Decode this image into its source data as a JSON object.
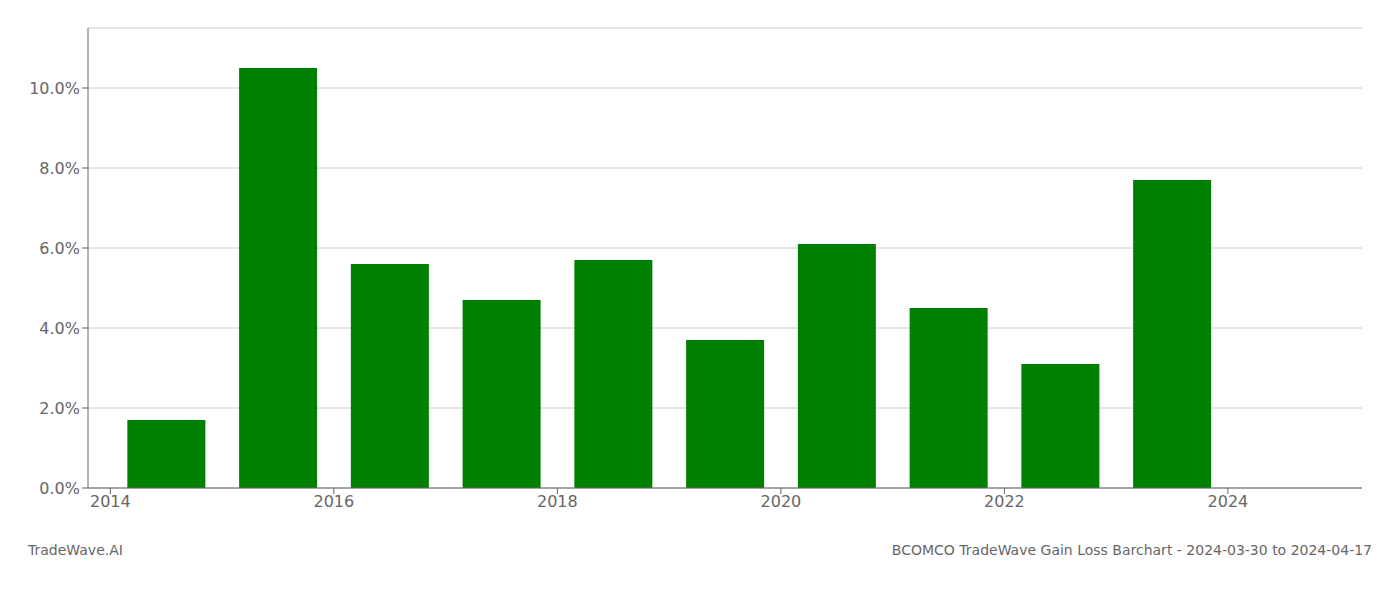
{
  "chart_data": {
    "type": "bar",
    "title": "BCOMCO TradeWave Gain Loss Barchart - 2024-03-30 to 2024-04-17",
    "annotations": [
      "TradeWave.AI"
    ],
    "x": [
      2014,
      2015,
      2016,
      2017,
      2018,
      2019,
      2020,
      2021,
      2022,
      2023
    ],
    "values": [
      0.017,
      0.105,
      0.056,
      0.047,
      0.057,
      0.037,
      0.061,
      0.045,
      0.031,
      0.077
    ],
    "color": "#008000",
    "xlim": [
      2013.3,
      2024.7
    ],
    "xticks": [
      {
        "value": 2013.5,
        "label": "2014"
      },
      {
        "value": 2015.5,
        "label": "2016"
      },
      {
        "value": 2017.5,
        "label": "2018"
      },
      {
        "value": 2019.5,
        "label": "2020"
      },
      {
        "value": 2021.5,
        "label": "2022"
      },
      {
        "value": 2023.5,
        "label": "2024"
      }
    ],
    "ylim": [
      0,
      0.115
    ],
    "yticks": [
      {
        "value": 0,
        "label": "0.0%"
      },
      {
        "value": 0.02,
        "label": "2.0%"
      },
      {
        "value": 0.04,
        "label": "4.0%"
      },
      {
        "value": 0.06,
        "label": "6.0%"
      },
      {
        "value": 0.08,
        "label": "8.0%"
      },
      {
        "value": 0.1,
        "label": "10.0%"
      }
    ],
    "grid": true
  }
}
